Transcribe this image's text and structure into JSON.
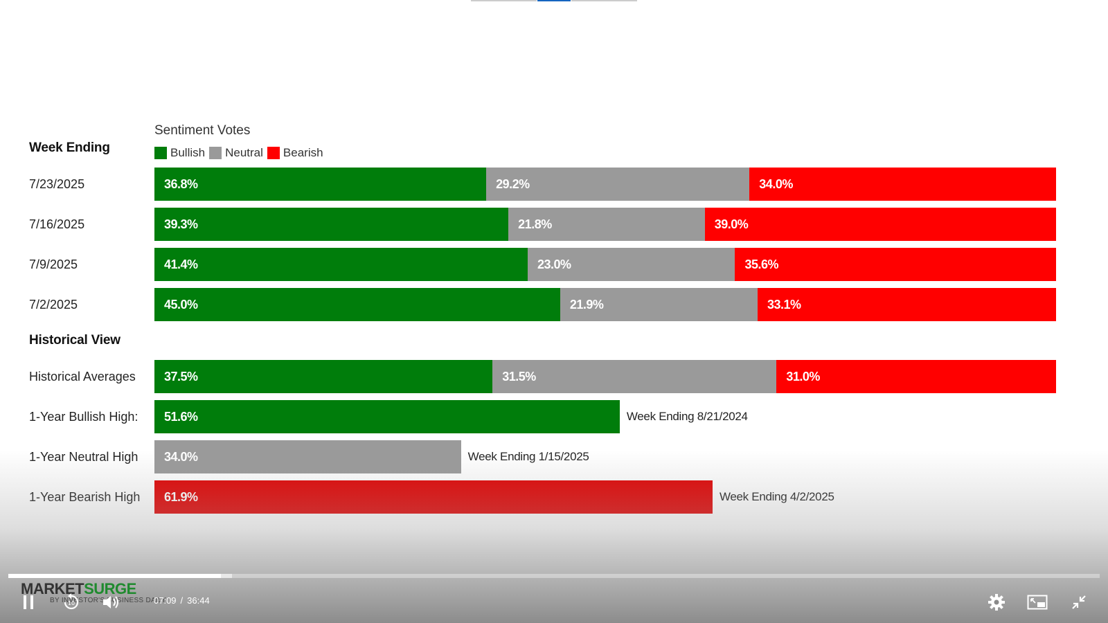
{
  "colors": {
    "bullish": "#007d0b",
    "neutral": "#9a9a9a",
    "bearish": "#ff0000",
    "bearish_high": "#e00000",
    "tab_active": "#1565c0",
    "tab_idle": "#cccccc"
  },
  "chart_data": {
    "type": "bar",
    "orientation": "horizontal",
    "stacked": true,
    "title": "Sentiment Votes",
    "legend": {
      "placement": "top-left",
      "entries": [
        "Bullish",
        "Neutral",
        "Bearish"
      ]
    },
    "weekly_heading": "Week Ending",
    "weekly": [
      {
        "category": "7/23/2025",
        "values": [
          36.8,
          29.2,
          34.0
        ],
        "labels": [
          "36.8%",
          "29.2%",
          "34.0%"
        ]
      },
      {
        "category": "7/16/2025",
        "values": [
          39.3,
          21.8,
          39.0
        ],
        "labels": [
          "39.3%",
          "21.8%",
          "39.0%"
        ]
      },
      {
        "category": "7/9/2025",
        "values": [
          41.4,
          23.0,
          35.6
        ],
        "labels": [
          "41.4%",
          "23.0%",
          "35.6%"
        ]
      },
      {
        "category": "7/2/2025",
        "values": [
          45.0,
          21.9,
          33.1
        ],
        "labels": [
          "45.0%",
          "21.9%",
          "33.1%"
        ]
      }
    ],
    "historical_heading": "Historical View",
    "historical_average": {
      "category": "Historical Averages",
      "values": [
        37.5,
        31.5,
        31.0
      ],
      "labels": [
        "37.5%",
        "31.5%",
        "31.0%"
      ]
    },
    "highs": [
      {
        "category": "1-Year Bullish High:",
        "sentiment": "bullish",
        "value": 51.6,
        "label": "51.6%",
        "note": "Week Ending 8/21/2024"
      },
      {
        "category": "1-Year Neutral High",
        "sentiment": "neutral",
        "value": 34.0,
        "label": "34.0%",
        "note": "Week Ending 1/15/2025"
      },
      {
        "category": "1-Year Bearish High",
        "sentiment": "bearish",
        "value": 61.9,
        "label": "61.9%",
        "note": "Week Ending 4/2/2025"
      }
    ],
    "xlim": [
      0,
      100
    ]
  },
  "player": {
    "current_time": "07:09",
    "separator": "/",
    "duration": "36:44",
    "progress_fraction": 0.195,
    "buffered_fraction": 0.205,
    "logo": {
      "part1": "MARKET",
      "part2": "SURGE",
      "sub": "BY INVESTOR'S BUSINESS DAILY"
    },
    "icons": {
      "pause": "pause-icon",
      "rewind": "rewind-10-icon",
      "volume": "volume-icon",
      "settings": "gear-icon",
      "pip": "picture-in-picture-icon",
      "fullscreen": "exit-fullscreen-icon"
    }
  }
}
